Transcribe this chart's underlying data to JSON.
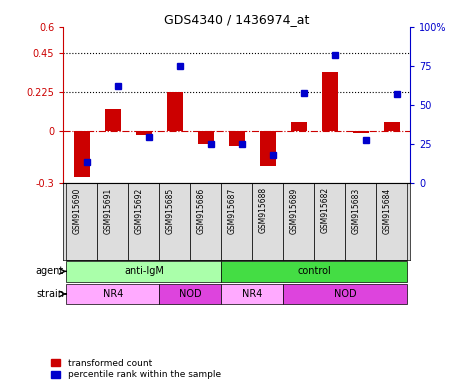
{
  "title": "GDS4340 / 1436974_at",
  "samples": [
    "GSM915690",
    "GSM915691",
    "GSM915692",
    "GSM915685",
    "GSM915686",
    "GSM915687",
    "GSM915688",
    "GSM915689",
    "GSM915682",
    "GSM915683",
    "GSM915684"
  ],
  "red_values": [
    -0.265,
    0.13,
    -0.02,
    0.225,
    -0.075,
    -0.085,
    -0.2,
    0.055,
    0.34,
    -0.01,
    0.055
  ],
  "blue_values": [
    14,
    62,
    30,
    75,
    25,
    25,
    18,
    58,
    82,
    28,
    57
  ],
  "ylim_left": [
    -0.3,
    0.6
  ],
  "ylim_right": [
    0,
    100
  ],
  "yticks_left": [
    -0.3,
    0.0,
    0.225,
    0.45,
    0.6
  ],
  "yticks_right": [
    0,
    25,
    50,
    75,
    100
  ],
  "ytick_labels_left": [
    "-0.3",
    "0",
    "0.225",
    "0.45",
    "0.6"
  ],
  "ytick_labels_right": [
    "0",
    "25",
    "50",
    "75",
    "100%"
  ],
  "hlines": [
    0.225,
    0.45
  ],
  "red_color": "#cc0000",
  "blue_color": "#0000cc",
  "agent_groups": [
    {
      "label": "anti-IgM",
      "start": 0,
      "end": 5,
      "color": "#aaffaa"
    },
    {
      "label": "control",
      "start": 5,
      "end": 11,
      "color": "#44dd44"
    }
  ],
  "strain_groups": [
    {
      "label": "NR4",
      "start": 0,
      "end": 3,
      "color": "#ffaaff"
    },
    {
      "label": "NOD",
      "start": 3,
      "end": 5,
      "color": "#dd44dd"
    },
    {
      "label": "NR4",
      "start": 5,
      "end": 7,
      "color": "#ffaaff"
    },
    {
      "label": "NOD",
      "start": 7,
      "end": 11,
      "color": "#dd44dd"
    }
  ],
  "bar_width": 0.5,
  "legend_red": "transformed count",
  "legend_blue": "percentile rank within the sample",
  "background_color": "#ffffff"
}
